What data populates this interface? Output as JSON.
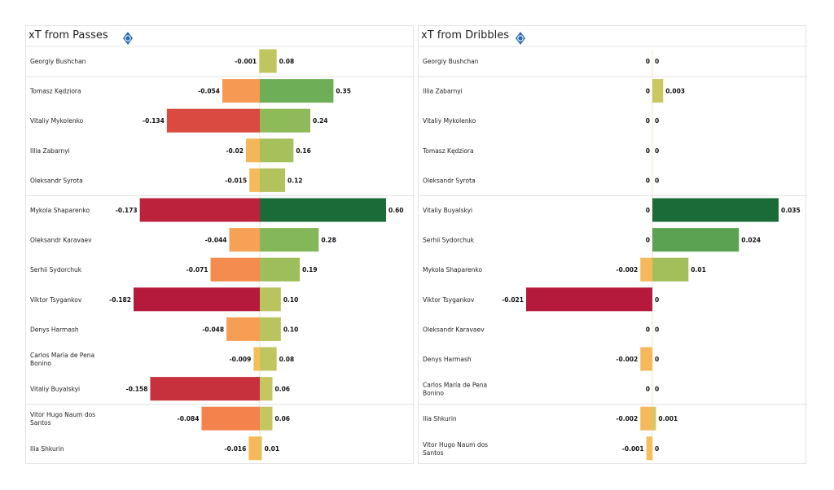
{
  "colormap": {
    "positive": [
      "#d8ca63",
      "#a9c15b",
      "#7db65a",
      "#4f9d50",
      "#1a6b38"
    ],
    "negative": [
      "#f4c75d",
      "#f6a055",
      "#f47c4a",
      "#d8473f",
      "#b5193b"
    ]
  },
  "chart_data": [
    {
      "type": "bar",
      "title": "xT from Passes",
      "group_breaks_after": [
        0,
        4,
        11
      ],
      "categories": [
        "Georgiy Bushchan",
        "Tomasz Kędziora",
        "Vitaliy Mykolenko",
        "Illia Zabarnyi",
        "Oleksandr Syrota",
        "Mykola Shaparenko",
        "Oleksandr Karavaev",
        "Serhii Sydorchuk",
        "Viktor Tsygankov",
        "Denys Harmash",
        "Carlos María de Pena Bonino",
        "Vitaliy Buyalskyi",
        "Vitor Hugo Naum dos Santos",
        "Ilia Shkurin"
      ],
      "negative_labels": [
        "-0.001",
        "-0.054",
        "-0.134",
        "-0.02",
        "-0.015",
        "-0.173",
        "-0.044",
        "-0.071",
        "-0.182",
        "-0.048",
        "-0.009",
        "-0.158",
        "-0.084",
        "-0.016"
      ],
      "negative": [
        -0.001,
        -0.054,
        -0.134,
        -0.02,
        -0.015,
        -0.173,
        -0.044,
        -0.071,
        -0.182,
        -0.048,
        -0.009,
        -0.158,
        -0.084,
        -0.016
      ],
      "positive_labels": [
        "0.08",
        "0.35",
        "0.24",
        "0.16",
        "0.12",
        "0.60",
        "0.28",
        "0.19",
        "0.10",
        "0.10",
        "0.08",
        "0.06",
        "0.06",
        "0.01"
      ],
      "positive": [
        0.08,
        0.35,
        0.24,
        0.16,
        0.12,
        0.6,
        0.28,
        0.19,
        0.1,
        0.1,
        0.08,
        0.06,
        0.06,
        0.01
      ]
    },
    {
      "type": "bar",
      "title": "xT from Dribbles",
      "group_breaks_after": [
        0,
        4,
        11
      ],
      "categories": [
        "Georgiy Bushchan",
        "Illia Zabarnyi",
        "Vitaliy Mykolenko",
        "Tomasz Kędziora",
        "Oleksandr Syrota",
        "Vitaliy Buyalskyi",
        "Serhii Sydorchuk",
        "Mykola Shaparenko",
        "Viktor Tsygankov",
        "Oleksandr Karavaev",
        "Denys Harmash",
        "Carlos María de Pena Bonino",
        "Ilia Shkurin",
        "Vitor Hugo Naum dos Santos"
      ],
      "negative_labels": [
        "0",
        "0",
        "0",
        "0",
        "0",
        "0",
        "0",
        "-0.002",
        "-0.021",
        "0",
        "-0.002",
        "0",
        "-0.002",
        "-0.001"
      ],
      "negative": [
        0,
        0,
        0,
        0,
        0,
        0,
        0,
        -0.002,
        -0.021,
        0,
        -0.002,
        0,
        -0.002,
        -0.001
      ],
      "positive_labels": [
        "0",
        "0.003",
        "0",
        "0",
        "0",
        "0.035",
        "0.024",
        "0.01",
        "0",
        "0",
        "0",
        "0",
        "0.001",
        "0"
      ],
      "positive": [
        0,
        0.003,
        0,
        0,
        0,
        0.035,
        0.024,
        0.01,
        0,
        0,
        0,
        0,
        0.001,
        0
      ]
    }
  ]
}
